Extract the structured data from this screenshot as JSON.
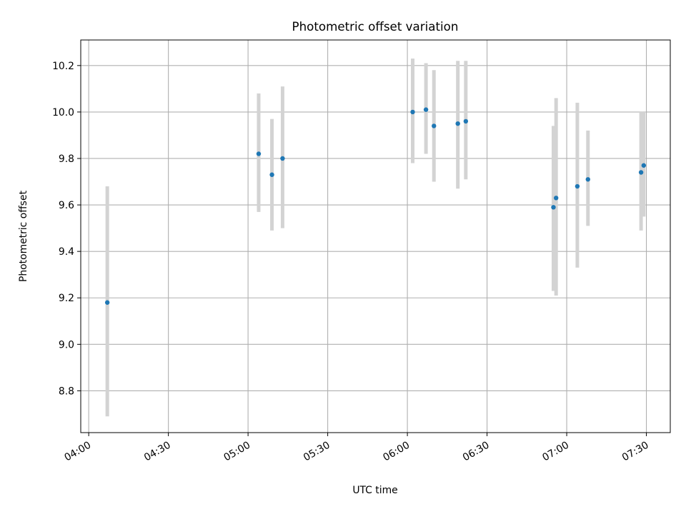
{
  "chart_data": {
    "type": "scatter",
    "title": "Photometric offset variation",
    "xlabel": "UTC time",
    "ylabel": "Photometric offset",
    "x_ticks": [
      "04:00",
      "04:30",
      "05:00",
      "05:30",
      "06:00",
      "06:30",
      "07:00",
      "07:30"
    ],
    "x_tick_minutes": [
      240,
      270,
      300,
      330,
      360,
      390,
      420,
      450
    ],
    "xlim": [
      "03:57",
      "07:39"
    ],
    "y_ticks": [
      "8.8",
      "9.0",
      "9.2",
      "9.4",
      "9.6",
      "9.8",
      "10.0",
      "10.2"
    ],
    "y_tick_values": [
      8.8,
      9.0,
      9.2,
      9.4,
      9.6,
      9.8,
      10.0,
      10.2
    ],
    "ylim": [
      8.62,
      10.31
    ],
    "grid": true,
    "series": [
      {
        "marker_color": "#1f77b4",
        "errorbar_color": "#d3d3d3",
        "points": [
          {
            "time": "04:07",
            "y": 9.18,
            "ymin": 8.69,
            "ymax": 9.68
          },
          {
            "time": "05:04",
            "y": 9.82,
            "ymin": 9.57,
            "ymax": 10.08
          },
          {
            "time": "05:09",
            "y": 9.73,
            "ymin": 9.49,
            "ymax": 9.97
          },
          {
            "time": "05:13",
            "y": 9.8,
            "ymin": 9.5,
            "ymax": 10.11
          },
          {
            "time": "06:02",
            "y": 10.0,
            "ymin": 9.78,
            "ymax": 10.23
          },
          {
            "time": "06:07",
            "y": 10.01,
            "ymin": 9.82,
            "ymax": 10.21
          },
          {
            "time": "06:10",
            "y": 9.94,
            "ymin": 9.7,
            "ymax": 10.18
          },
          {
            "time": "06:19",
            "y": 9.95,
            "ymin": 9.67,
            "ymax": 10.22
          },
          {
            "time": "06:22",
            "y": 9.96,
            "ymin": 9.71,
            "ymax": 10.22
          },
          {
            "time": "06:55",
            "y": 9.59,
            "ymin": 9.23,
            "ymax": 9.94
          },
          {
            "time": "06:56",
            "y": 9.63,
            "ymin": 9.21,
            "ymax": 10.06
          },
          {
            "time": "07:04",
            "y": 9.68,
            "ymin": 9.33,
            "ymax": 10.04
          },
          {
            "time": "07:08",
            "y": 9.71,
            "ymin": 9.51,
            "ymax": 9.92
          },
          {
            "time": "07:28",
            "y": 9.74,
            "ymin": 9.49,
            "ymax": 10.0
          },
          {
            "time": "07:29",
            "y": 9.77,
            "ymin": 9.55,
            "ymax": 10.0
          }
        ]
      }
    ]
  }
}
